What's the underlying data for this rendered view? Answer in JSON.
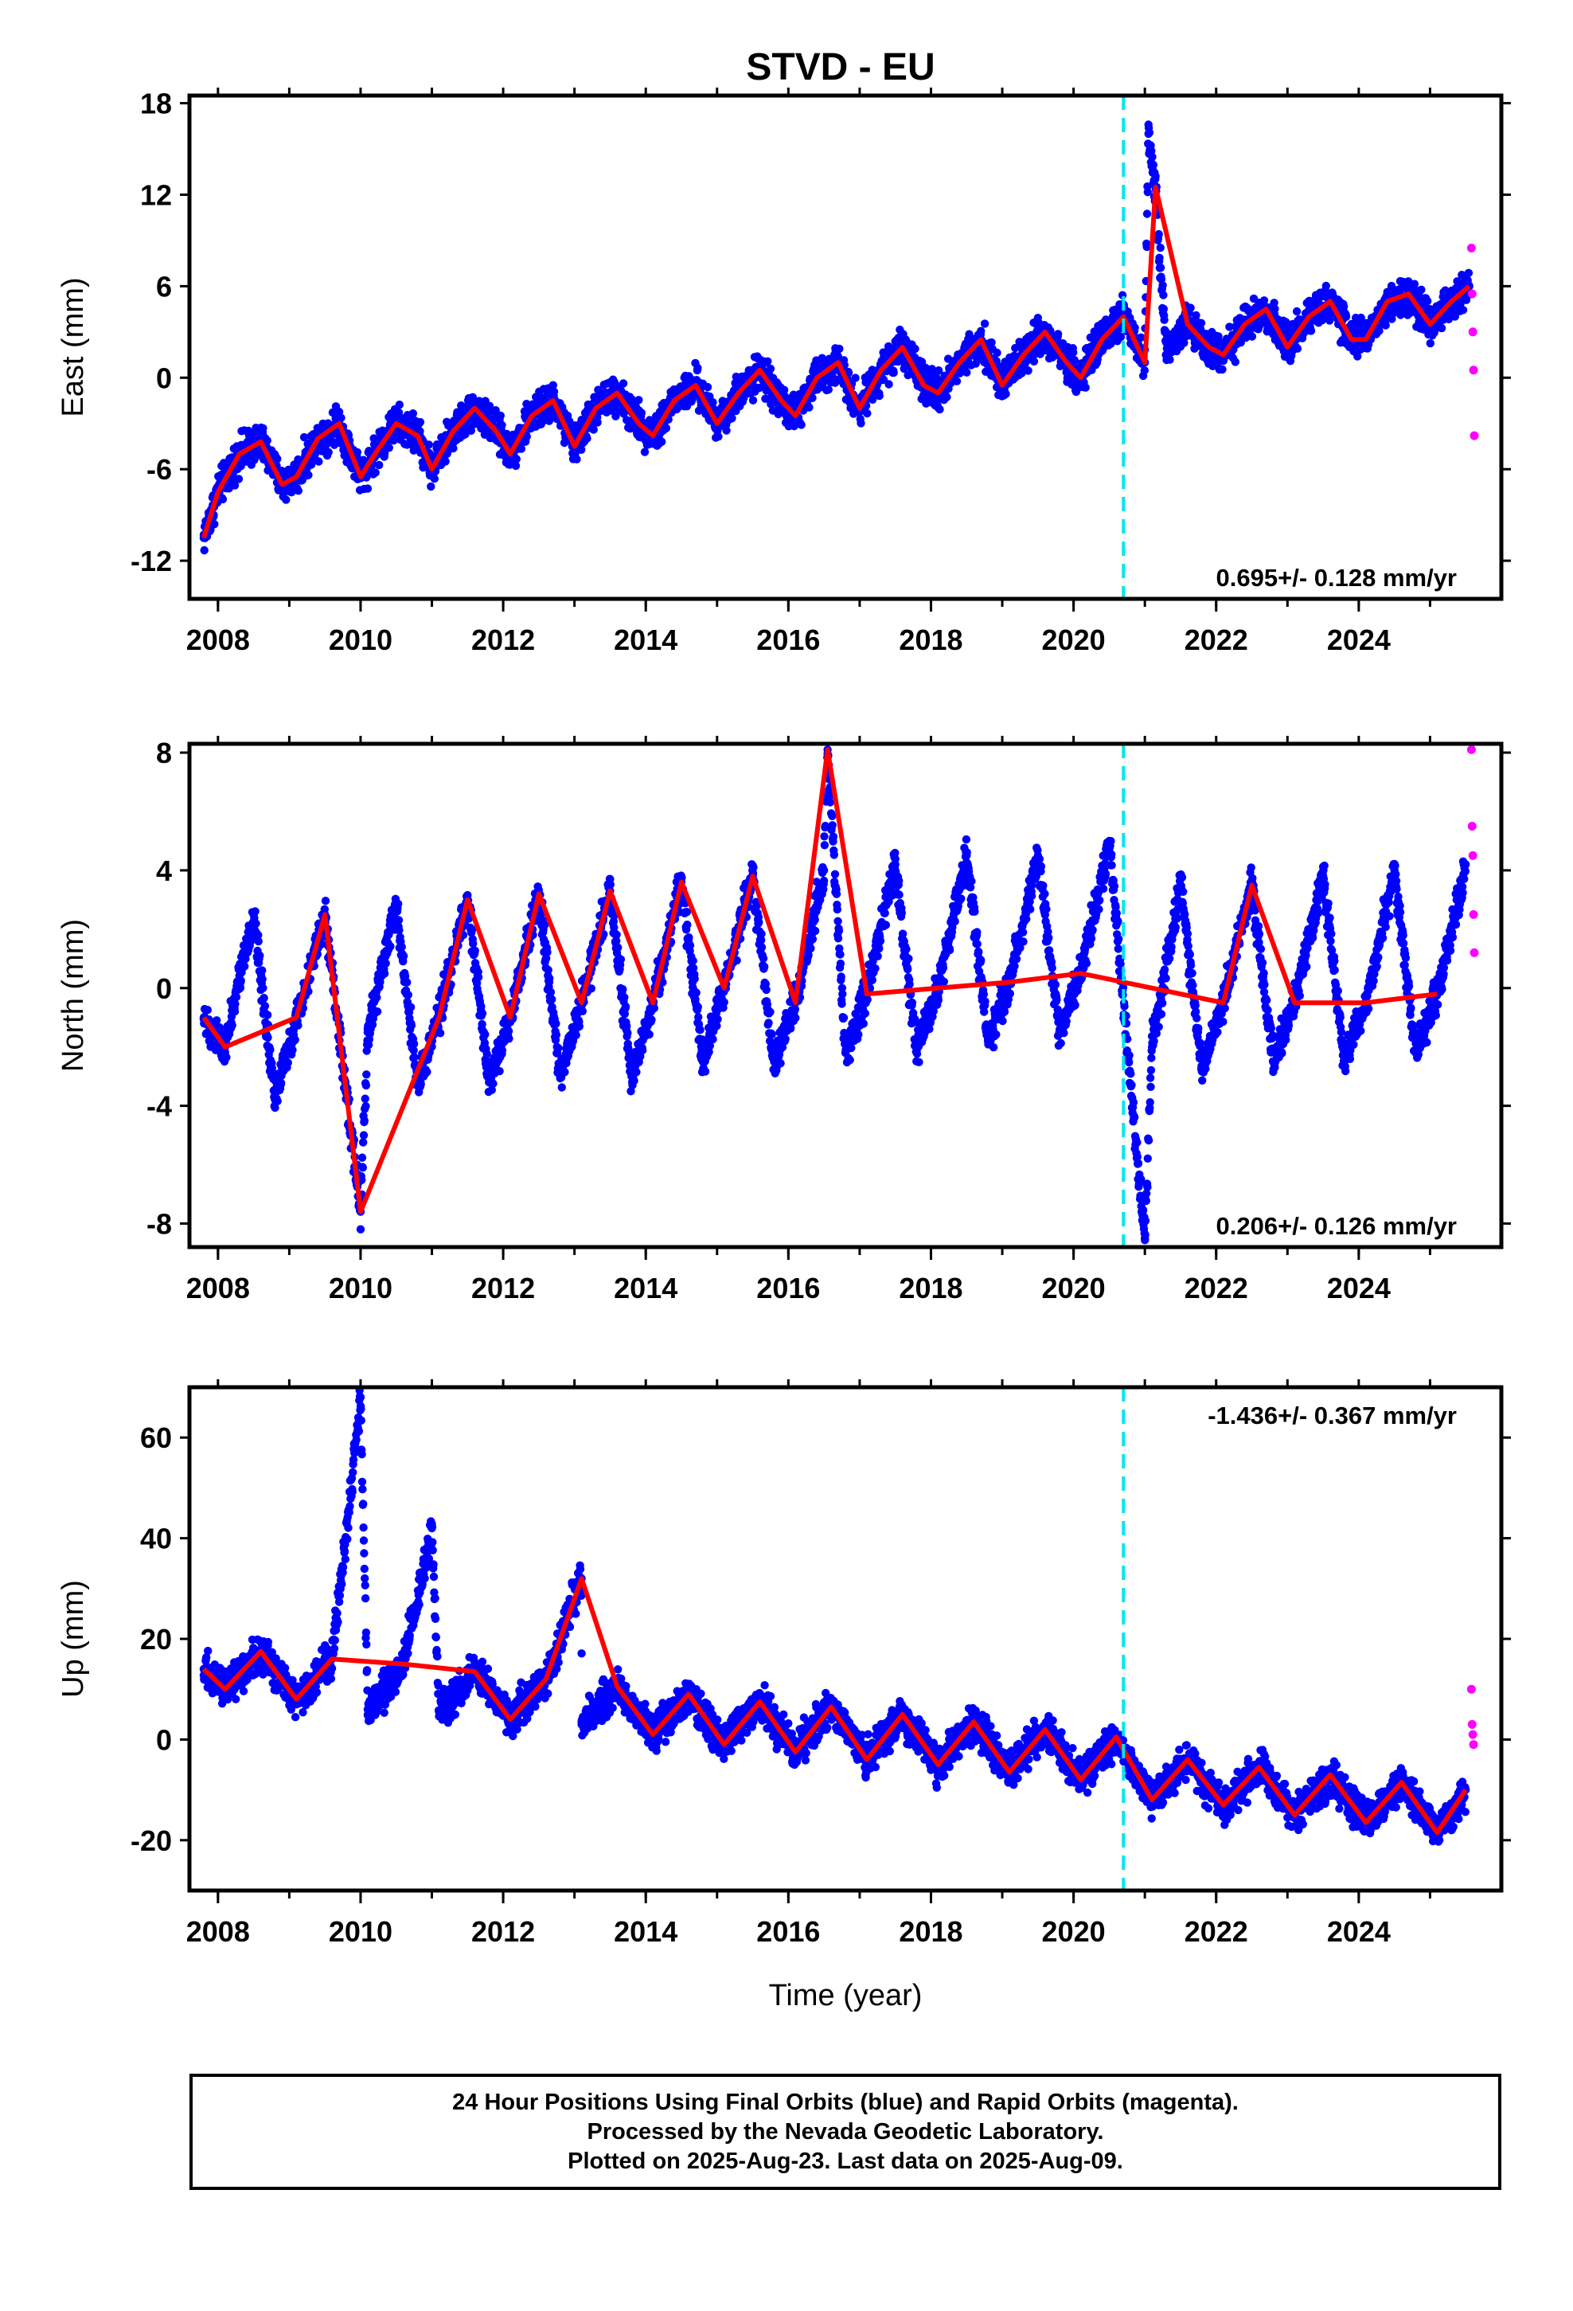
{
  "title": "STVD - EU",
  "colors": {
    "final": "#0000ff",
    "rapid": "#ff00ff",
    "model": "#ff0000",
    "event": "#00e5ee"
  },
  "event_year": 2020.7,
  "chart_data": [
    {
      "type": "scatter",
      "ylabel": "East (mm)",
      "xlim": [
        2007.6,
        2026.0
      ],
      "ylim": [
        -14.5,
        18.5
      ],
      "yticks": [
        "18",
        "12",
        "6",
        "0",
        "-6",
        "-12"
      ],
      "xticks": [
        "2008",
        "2010",
        "2012",
        "2014",
        "2016",
        "2018",
        "2020",
        "2022",
        "2024"
      ],
      "rate_label": "0.695+/- 0.128 mm/yr",
      "rate_position": "bottom-right",
      "rate_mm_yr": 0.695,
      "series": [
        {
          "values": [
            [
              2007.8,
              -10.5
            ],
            [
              2008.0,
              -7.5
            ],
            [
              2008.3,
              -5.0
            ],
            [
              2008.6,
              -4.2
            ],
            [
              2008.9,
              -7.0
            ],
            [
              2009.1,
              -6.5
            ],
            [
              2009.4,
              -4.0
            ],
            [
              2009.7,
              -3.0
            ],
            [
              2010.0,
              -6.5
            ],
            [
              2010.2,
              -5.0
            ],
            [
              2010.5,
              -3.0
            ],
            [
              2010.8,
              -3.8
            ],
            [
              2011.0,
              -6.0
            ],
            [
              2011.3,
              -3.5
            ],
            [
              2011.6,
              -2.0
            ],
            [
              2011.9,
              -3.5
            ],
            [
              2012.1,
              -5.0
            ],
            [
              2012.4,
              -2.5
            ],
            [
              2012.7,
              -1.5
            ],
            [
              2013.0,
              -4.5
            ],
            [
              2013.3,
              -2.0
            ],
            [
              2013.6,
              -1.0
            ],
            [
              2013.9,
              -3.0
            ],
            [
              2014.1,
              -3.8
            ],
            [
              2014.4,
              -1.5
            ],
            [
              2014.7,
              -0.5
            ],
            [
              2015.0,
              -3.0
            ],
            [
              2015.3,
              -1.0
            ],
            [
              2015.6,
              0.5
            ],
            [
              2015.9,
              -1.5
            ],
            [
              2016.1,
              -2.5
            ],
            [
              2016.4,
              0.0
            ],
            [
              2016.7,
              1.0
            ],
            [
              2017.0,
              -2.0
            ],
            [
              2017.3,
              0.5
            ],
            [
              2017.6,
              2.0
            ],
            [
              2017.9,
              -0.5
            ],
            [
              2018.1,
              -1.0
            ],
            [
              2018.4,
              1.0
            ],
            [
              2018.7,
              2.5
            ],
            [
              2019.0,
              -0.5
            ],
            [
              2019.3,
              1.5
            ],
            [
              2019.6,
              3.0
            ],
            [
              2019.9,
              1.0
            ],
            [
              2020.1,
              0.0
            ],
            [
              2020.4,
              2.5
            ],
            [
              2020.7,
              4.0
            ],
            [
              2021.0,
              1.0
            ],
            [
              2021.05,
              16.0
            ],
            [
              2021.15,
              12.5
            ],
            [
              2021.3,
              1.5
            ],
            [
              2021.6,
              3.5
            ],
            [
              2021.9,
              2.0
            ],
            [
              2022.1,
              1.5
            ],
            [
              2022.4,
              3.5
            ],
            [
              2022.7,
              4.5
            ],
            [
              2023.0,
              2.0
            ],
            [
              2023.3,
              4.0
            ],
            [
              2023.6,
              5.0
            ],
            [
              2023.9,
              2.5
            ],
            [
              2024.1,
              2.5
            ],
            [
              2024.4,
              5.0
            ],
            [
              2024.7,
              5.5
            ],
            [
              2025.0,
              3.5
            ],
            [
              2025.3,
              5.0
            ],
            [
              2025.55,
              6.0
            ]
          ]
        },
        {
          "values": [
            [
              2025.58,
              8.5
            ],
            [
              2025.59,
              5.5
            ],
            [
              2025.6,
              3.0
            ],
            [
              2025.61,
              0.5
            ],
            [
              2025.62,
              -3.8
            ]
          ]
        }
      ]
    },
    {
      "type": "scatter",
      "ylabel": "North (mm)",
      "xlim": [
        2007.6,
        2026.0
      ],
      "ylim": [
        -8.8,
        8.3
      ],
      "yticks": [
        "8",
        "4",
        "0",
        "-4",
        "-8"
      ],
      "xticks": [
        "2008",
        "2010",
        "2012",
        "2014",
        "2016",
        "2018",
        "2020",
        "2022",
        "2024"
      ],
      "rate_label": "0.206+/- 0.126 mm/yr",
      "rate_position": "bottom-right",
      "rate_mm_yr": 0.206,
      "series": [
        {
          "values": [
            [
              2007.8,
              -1.0
            ],
            [
              2008.1,
              -2.0
            ],
            [
              2008.5,
              2.5
            ],
            [
              2008.8,
              -3.8
            ],
            [
              2009.1,
              -1.0
            ],
            [
              2009.5,
              2.5
            ],
            [
              2009.8,
              -3.5
            ],
            [
              2010.0,
              -7.6
            ],
            [
              2010.1,
              -1.5
            ],
            [
              2010.5,
              2.8
            ],
            [
              2010.8,
              -3.2
            ],
            [
              2011.1,
              -1.0
            ],
            [
              2011.5,
              3.0
            ],
            [
              2011.8,
              -3.2
            ],
            [
              2012.1,
              -1.0
            ],
            [
              2012.5,
              3.2
            ],
            [
              2012.8,
              -3.0
            ],
            [
              2013.1,
              -0.5
            ],
            [
              2013.5,
              3.3
            ],
            [
              2013.8,
              -3.0
            ],
            [
              2014.1,
              -0.5
            ],
            [
              2014.5,
              3.6
            ],
            [
              2014.8,
              -2.5
            ],
            [
              2015.1,
              0.0
            ],
            [
              2015.5,
              3.8
            ],
            [
              2015.8,
              -2.5
            ],
            [
              2016.1,
              -0.5
            ],
            [
              2016.5,
              4.0
            ],
            [
              2016.55,
              8.1
            ],
            [
              2016.8,
              -2.2
            ],
            [
              2017.1,
              -0.2
            ],
            [
              2017.5,
              4.2
            ],
            [
              2017.8,
              -2.0
            ],
            [
              2018.1,
              0.0
            ],
            [
              2018.5,
              4.5
            ],
            [
              2018.8,
              -1.8
            ],
            [
              2019.1,
              0.2
            ],
            [
              2019.5,
              4.5
            ],
            [
              2019.8,
              -1.5
            ],
            [
              2020.1,
              0.5
            ],
            [
              2020.5,
              5.0
            ],
            [
              2020.8,
              -3.3
            ],
            [
              2021.0,
              -8.5
            ],
            [
              2021.1,
              -2.0
            ],
            [
              2021.5,
              3.5
            ],
            [
              2021.8,
              -2.8
            ],
            [
              2022.1,
              -0.5
            ],
            [
              2022.5,
              3.5
            ],
            [
              2022.8,
              -2.5
            ],
            [
              2023.1,
              -0.5
            ],
            [
              2023.5,
              3.8
            ],
            [
              2023.8,
              -2.5
            ],
            [
              2024.1,
              -0.5
            ],
            [
              2024.5,
              4.0
            ],
            [
              2024.8,
              -2.2
            ],
            [
              2025.1,
              -0.2
            ],
            [
              2025.5,
              4.2
            ]
          ]
        },
        {
          "values": [
            [
              2025.58,
              8.1
            ],
            [
              2025.59,
              5.5
            ],
            [
              2025.6,
              4.5
            ],
            [
              2025.61,
              2.5
            ],
            [
              2025.62,
              1.2
            ]
          ]
        }
      ]
    },
    {
      "type": "scatter",
      "ylabel": "Up (mm)",
      "xlabel": "Time (year)",
      "xlim": [
        2007.6,
        2026.0
      ],
      "ylim": [
        -30,
        70
      ],
      "yticks": [
        "60",
        "40",
        "20",
        "0",
        "-20"
      ],
      "xticks": [
        "2008",
        "2010",
        "2012",
        "2014",
        "2016",
        "2018",
        "2020",
        "2022",
        "2024"
      ],
      "rate_label": "-1.436+/- 0.367 mm/yr",
      "rate_position": "top-right",
      "rate_mm_yr": -1.436,
      "series": [
        {
          "values": [
            [
              2007.8,
              14.0
            ],
            [
              2008.1,
              10.0
            ],
            [
              2008.6,
              17.5
            ],
            [
              2009.1,
              8.0
            ],
            [
              2009.6,
              16.0
            ],
            [
              2010.0,
              68.0
            ],
            [
              2010.1,
              6.0
            ],
            [
              2010.6,
              15.0
            ],
            [
              2011.0,
              42.0
            ],
            [
              2011.1,
              5.5
            ],
            [
              2011.6,
              13.5
            ],
            [
              2012.1,
              4.0
            ],
            [
              2012.6,
              12.0
            ],
            [
              2013.1,
              32.0
            ],
            [
              2013.1,
              3.0
            ],
            [
              2013.6,
              10.5
            ],
            [
              2014.1,
              1.0
            ],
            [
              2014.6,
              9.0
            ],
            [
              2015.1,
              -1.0
            ],
            [
              2015.6,
              7.5
            ],
            [
              2016.1,
              -2.5
            ],
            [
              2016.6,
              6.5
            ],
            [
              2017.1,
              -4.0
            ],
            [
              2017.6,
              5.0
            ],
            [
              2018.1,
              -5.0
            ],
            [
              2018.6,
              3.5
            ],
            [
              2019.1,
              -6.5
            ],
            [
              2019.6,
              2.0
            ],
            [
              2020.1,
              -8.0
            ],
            [
              2020.6,
              0.5
            ],
            [
              2021.1,
              -12.0
            ],
            [
              2021.6,
              -4.0
            ],
            [
              2022.1,
              -13.0
            ],
            [
              2022.6,
              -5.5
            ],
            [
              2023.1,
              -15.0
            ],
            [
              2023.6,
              -7.0
            ],
            [
              2024.1,
              -16.5
            ],
            [
              2024.6,
              -8.5
            ],
            [
              2025.1,
              -18.5
            ],
            [
              2025.5,
              -10.0
            ]
          ]
        },
        {
          "values": [
            [
              2025.58,
              10.0
            ],
            [
              2025.59,
              3.0
            ],
            [
              2025.6,
              1.0
            ],
            [
              2025.61,
              -1.0
            ]
          ]
        }
      ]
    }
  ],
  "footer": {
    "line1": "24 Hour Positions Using Final Orbits (blue) and Rapid Orbits (magenta).",
    "line2": "Processed by the Nevada Geodetic Laboratory.",
    "line3": "Plotted on 2025-Aug-23. Last data on 2025-Aug-09."
  }
}
